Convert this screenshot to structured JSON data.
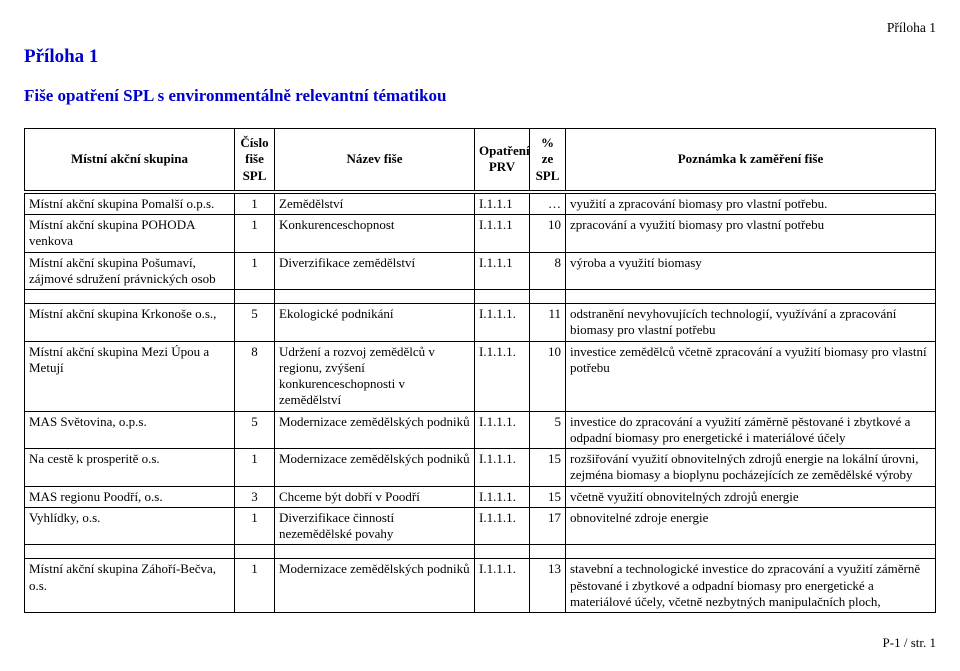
{
  "topRight": "Příloha 1",
  "heading1": "Příloha 1",
  "heading2": "Fiše opatření SPL s environmentálně relevantní tématikou",
  "columns": {
    "skupina": "Místní akční skupina",
    "cislo": "Číslo fiše SPL",
    "nazev": "Název fiše",
    "opat": "Opatření PRV",
    "pct": "% ze SPL",
    "pozn": "Poznámka k zaměření fiše"
  },
  "rows": [
    {
      "skupina": "Místní akční skupina Pomalší o.p.s.",
      "cislo": "1",
      "nazev": "Zemědělství",
      "opat": "I.1.1.1",
      "pct": "…",
      "pozn": "využití a zpracování biomasy pro vlastní potřebu."
    },
    {
      "skupina": "Místní akční skupina POHODA venkova",
      "cislo": "1",
      "nazev": "Konkurenceschopnost",
      "opat": "I.1.1.1",
      "pct": "10",
      "pozn": "zpracování a využití biomasy pro vlastní potřebu"
    },
    {
      "skupina": "Místní akční skupina Pošumaví, zájmové sdružení právnických osob",
      "cislo": "1",
      "nazev": "Diverzifikace zemědělství",
      "opat": "I.1.1.1",
      "pct": "8",
      "pozn": "výroba a využití biomasy"
    }
  ],
  "rows2": [
    {
      "skupina": "Místní akční skupina Krkonoše o.s.,",
      "cislo": "5",
      "nazev": "Ekologické podnikání",
      "opat": "I.1.1.1.",
      "pct": "11",
      "pozn": "odstranění nevyhovujících technologií, využívání a zpracování biomasy pro vlastní potřebu"
    },
    {
      "skupina": "Místní akční skupina Mezi Úpou a Metují",
      "cislo": "8",
      "nazev": "Udržení a rozvoj zemědělců v regionu, zvýšení konkurenceschopnosti v zemědělství",
      "opat": "I.1.1.1.",
      "pct": "10",
      "pozn": "investice zemědělců včetně zpracování a využití biomasy pro vlastní potřebu"
    },
    {
      "skupina": "MAS Světovina, o.p.s.",
      "cislo": "5",
      "nazev": "Modernizace zemědělských podniků",
      "opat": "I.1.1.1.",
      "pct": "5",
      "pozn": "investice do zpracování a využití záměrně pěstované i zbytkové a odpadní biomasy pro energetické i materiálové účely"
    },
    {
      "skupina": "Na cestě k prosperitě o.s.",
      "cislo": "1",
      "nazev": "Modernizace zemědělských podniků",
      "opat": "I.1.1.1.",
      "pct": "15",
      "pozn": "rozšiřování využití obnovitelných zdrojů energie na lokální úrovni, zejména biomasy a bioplynu pocházejících ze zemědělské výroby"
    },
    {
      "skupina": "MAS regionu Poodří, o.s.",
      "cislo": "3",
      "nazev": "Chceme být dobří v Poodří",
      "opat": "I.1.1.1.",
      "pct": "15",
      "pozn": "včetně využití obnovitelných zdrojů energie"
    },
    {
      "skupina": "Vyhlídky, o.s.",
      "cislo": "1",
      "nazev": "Diverzifikace činností nezemědělské povahy",
      "opat": "I.1.1.1.",
      "pct": "17",
      "pozn": "obnovitelné zdroje energie"
    }
  ],
  "rows3": [
    {
      "skupina": "Místní akční skupina Záhoří-Bečva, o.s.",
      "cislo": "1",
      "nazev": "Modernizace zemědělských podniků",
      "opat": "I.1.1.1.",
      "pct": "13",
      "pozn": "stavební a technologické investice do zpracování a využití záměrně pěstované i zbytkové a odpadní biomasy pro energetické a materiálové účely, včetně nezbytných manipulačních ploch,"
    }
  ],
  "footer": "P-1 / str. 1"
}
